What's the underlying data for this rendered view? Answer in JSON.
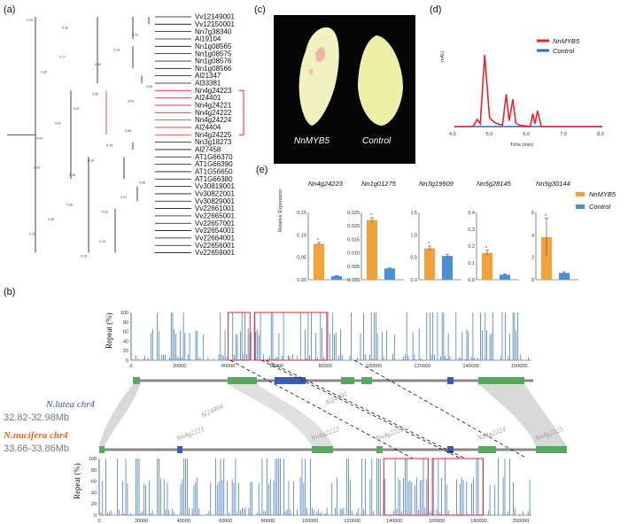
{
  "panels": {
    "a": "(a)",
    "b": "(b)",
    "c": "(c)",
    "d": "(d)",
    "e": "(e)"
  },
  "colors": {
    "red": "#e8242b",
    "blue": "#2f6cc0",
    "orange": "#f2a23a",
    "lightblue": "#4a90d9",
    "green": "#5aa860",
    "navy": "#3a5fb0",
    "gray": "#999999"
  },
  "tree": {
    "leaves": [
      "Vv12149001",
      "Vv12150001",
      "Nn7g38340",
      "Al19104",
      "Nn1g08565",
      "Nn1g08575",
      "Nn1g08576",
      "Nn1g08566",
      "Al21347",
      "Al33381",
      "Nn4g24223",
      "Al24401",
      "Nn4g24221",
      "Nn4g24222",
      "Nn4g24224",
      "Al24404",
      "Nn4g24225",
      "Nn3g18273",
      "Al27458",
      "AT1G66370",
      "AT1G66390",
      "AT1G56650",
      "AT1G66380",
      "Vv30819001",
      "Vv30822001",
      "Vv30829001",
      "Vv22661001",
      "Vv22665001",
      "Vv22657001",
      "Vv22654001",
      "Vv22664001",
      "Vv22656001",
      "Vv22659001"
    ],
    "highlighted_range": [
      10,
      16
    ],
    "branch_labels": [
      "0.19",
      "0.17",
      "0.52",
      "0.08",
      "0.03",
      "0.28",
      "0.10",
      "0.12",
      "0.30",
      "0.07",
      "0.15",
      "0.06",
      "0.46",
      "0.24",
      "0.14",
      "0.09",
      "0.41",
      "0.16",
      "0.27",
      "0.10",
      "0.39",
      "0.40",
      "0.01",
      "0.04",
      "0.05",
      "0.02"
    ]
  },
  "photo": {
    "left_label": "NnMYB5",
    "right_label": "Control"
  },
  "hplc": {
    "legend": [
      "NnMYB5",
      "Control"
    ],
    "ylabel": "mAU",
    "xlabel": "Time (min)",
    "xticks": [
      "4.0",
      "5.0",
      "6.0",
      "7.0",
      "8.0"
    ],
    "series_NnMYB5": {
      "x": [
        4.0,
        4.5,
        4.62,
        4.7,
        4.82,
        4.95,
        5.1,
        5.3,
        5.4,
        5.48,
        5.58,
        5.66,
        5.75,
        5.9,
        6.05,
        6.12,
        6.18,
        6.25,
        6.35,
        6.6,
        7.0,
        7.5,
        8.0
      ],
      "y": [
        0,
        0,
        10,
        4,
        100,
        12,
        5,
        2,
        45,
        8,
        38,
        5,
        2,
        1,
        0,
        18,
        4,
        22,
        0,
        0,
        0,
        0,
        0
      ]
    },
    "series_Control": {
      "x": [
        4.0,
        8.0
      ],
      "y": [
        0,
        0
      ]
    }
  },
  "chart_data": [
    {
      "type": "bar",
      "ylabel": "Relative Expression",
      "legend": [
        "NnMYB5",
        "Control"
      ],
      "groups": [
        {
          "title": "Nn4g24223",
          "values": [
            0.08,
            0.008
          ],
          "errors": [
            0.003,
            0.001
          ],
          "ylim": [
            0,
            0.15
          ],
          "yticks": [
            "0.00",
            "0.05",
            "0.10",
            "0.15"
          ]
        },
        {
          "title": "Nn1g01275",
          "values": [
            0.0222,
            0.0042
          ],
          "errors": [
            0.0008,
            0.0002
          ],
          "ylim": [
            0,
            0.025
          ],
          "yticks": [
            "0.000",
            "0.005",
            "0.010",
            "0.015",
            "0.020",
            "0.025"
          ]
        },
        {
          "title": "Nn3g19909",
          "values": [
            0.7,
            0.53
          ],
          "errors": [
            0.05,
            0.03
          ],
          "ylim": [
            0,
            1.5
          ],
          "yticks": [
            "0.0",
            "0.5",
            "1.0",
            "1.5"
          ]
        },
        {
          "title": "Nn5g28145",
          "values": [
            0.16,
            0.03
          ],
          "errors": [
            0.015,
            0.004
          ],
          "ylim": [
            0,
            0.4
          ],
          "yticks": [
            "0.0",
            "0.1",
            "0.2",
            "0.3",
            "0.4"
          ]
        },
        {
          "title": "Nn5g30144",
          "values": [
            3.8,
            0.6
          ],
          "errors": [
            1.7,
            0.1
          ],
          "ylim": [
            0,
            6
          ],
          "yticks": [
            "0",
            "2",
            "4",
            "6"
          ]
        }
      ],
      "marker": "*"
    },
    {
      "type": "bar",
      "title": "N.lutea chr4",
      "range_label": "32.82-32.98Mb",
      "ylabel": "Repeat (%)",
      "yticks": [
        "0",
        "20",
        "40",
        "60",
        "80",
        "100"
      ],
      "xticks": [
        "0",
        "20000",
        "40000",
        "60000",
        "80000",
        "100000",
        "120000",
        "140000",
        "160000"
      ],
      "xlim": [
        0,
        165000
      ]
    },
    {
      "type": "bar",
      "title": "N.nucifera chr4",
      "range_label": "33.66-33.86Mb",
      "ylabel": "Repeat (%)",
      "yticks": [
        "0",
        "20",
        "40",
        "60",
        "80",
        "100"
      ],
      "xticks": [
        "0",
        "20000",
        "40000",
        "60000",
        "80000",
        "100000",
        "120000",
        "140000",
        "160000",
        "180000",
        "200000"
      ],
      "xlim": [
        0,
        205000
      ]
    }
  ],
  "synteny": {
    "lutea_genes": [
      "Al24404",
      "Al24401"
    ],
    "nucifera_genes": [
      "Nn4g2221",
      "Nn4g2222",
      "Nn4g2223",
      "Nn4g2224",
      "Nn4g2225"
    ]
  }
}
